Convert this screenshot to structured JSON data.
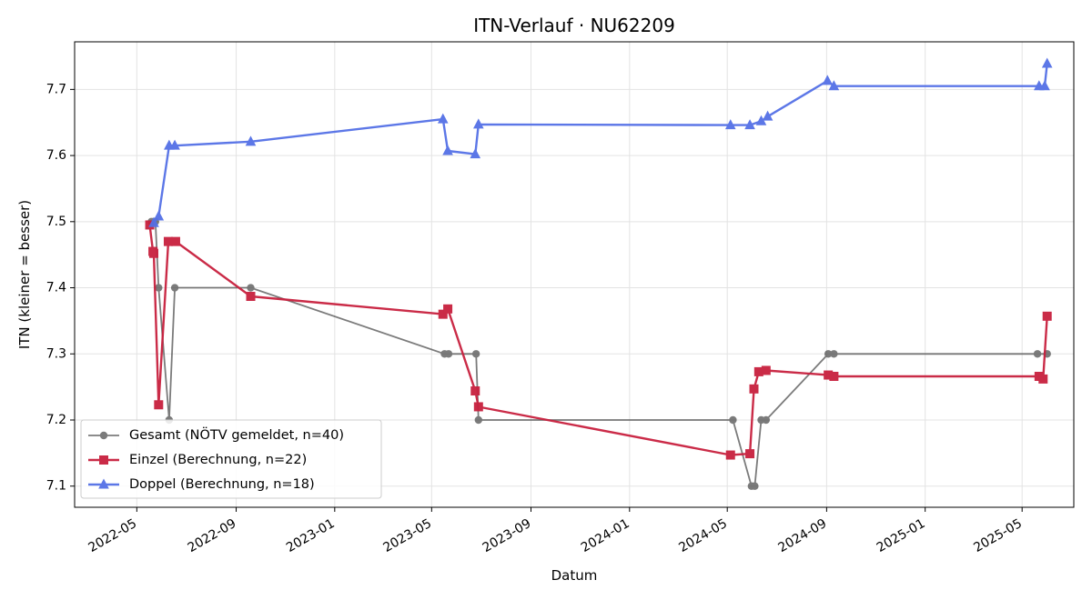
{
  "chart_data": {
    "type": "line",
    "title": "ITN-Verlauf · NU62209",
    "xlabel": "Datum",
    "ylabel": "ITN  (kleiner = besser)",
    "xlim": [
      "2022-02-13",
      "2025-07-04"
    ],
    "ylim": [
      7.068,
      7.772
    ],
    "grid": true,
    "legend_position": "lower-left",
    "xticks": [
      "2022-05",
      "2022-09",
      "2023-01",
      "2023-05",
      "2023-09",
      "2024-01",
      "2024-05",
      "2024-09",
      "2025-01",
      "2025-05"
    ],
    "yticks": [
      "7.1",
      "7.2",
      "7.3",
      "7.4",
      "7.5",
      "7.6",
      "7.7"
    ],
    "series": [
      {
        "name": "Gesamt (NÖTV gemeldet, n=40)",
        "color": "#444444",
        "marker": "circle",
        "x": [
          "2022-05-19",
          "2022-05-22",
          "2022-05-24",
          "2022-05-28",
          "2022-06-10",
          "2022-06-17",
          "2022-09-19",
          "2023-05-17",
          "2023-05-22",
          "2023-06-25",
          "2023-06-28",
          "2024-05-08",
          "2024-05-31",
          "2024-06-04",
          "2024-06-12",
          "2024-06-18",
          "2024-09-03",
          "2024-09-10",
          "2025-05-20",
          "2025-06-01"
        ],
        "y": [
          7.5,
          7.5,
          7.5,
          7.4,
          7.2,
          7.4,
          7.4,
          7.3,
          7.3,
          7.3,
          7.2,
          7.2,
          7.1,
          7.1,
          7.2,
          7.2,
          7.3,
          7.3,
          7.3,
          7.3
        ]
      },
      {
        "name": "Einzel (Berechnung, n=22)",
        "color": "#c8203e",
        "marker": "square",
        "x": [
          "2022-05-17",
          "2022-05-21",
          "2022-05-22",
          "2022-05-28",
          "2022-06-09",
          "2022-06-18",
          "2022-09-19",
          "2023-05-15",
          "2023-05-21",
          "2023-06-24",
          "2023-06-28",
          "2024-05-05",
          "2024-05-29",
          "2024-06-03",
          "2024-06-09",
          "2024-06-18",
          "2024-09-03",
          "2024-09-10",
          "2025-05-22",
          "2025-05-27",
          "2025-06-01"
        ],
        "y": [
          7.495,
          7.455,
          7.452,
          7.223,
          7.47,
          7.47,
          7.387,
          7.36,
          7.368,
          7.244,
          7.22,
          7.147,
          7.149,
          7.247,
          7.273,
          7.275,
          7.268,
          7.266,
          7.266,
          7.262,
          7.357
        ]
      },
      {
        "name": "Doppel (Berechnung, n=18)",
        "color": "#5470e6",
        "marker": "triangle",
        "x": [
          "2022-05-22",
          "2022-05-28",
          "2022-06-10",
          "2022-06-17",
          "2022-09-19",
          "2023-05-15",
          "2023-05-21",
          "2023-06-24",
          "2023-06-28",
          "2024-05-05",
          "2024-05-29",
          "2024-06-12",
          "2024-06-20",
          "2024-09-02",
          "2024-09-10",
          "2025-05-22",
          "2025-05-29",
          "2025-06-01"
        ],
        "y": [
          7.498,
          7.508,
          7.615,
          7.615,
          7.621,
          7.655,
          7.607,
          7.602,
          7.647,
          7.646,
          7.646,
          7.652,
          7.659,
          7.713,
          7.705,
          7.705,
          7.705,
          7.739
        ]
      }
    ]
  }
}
